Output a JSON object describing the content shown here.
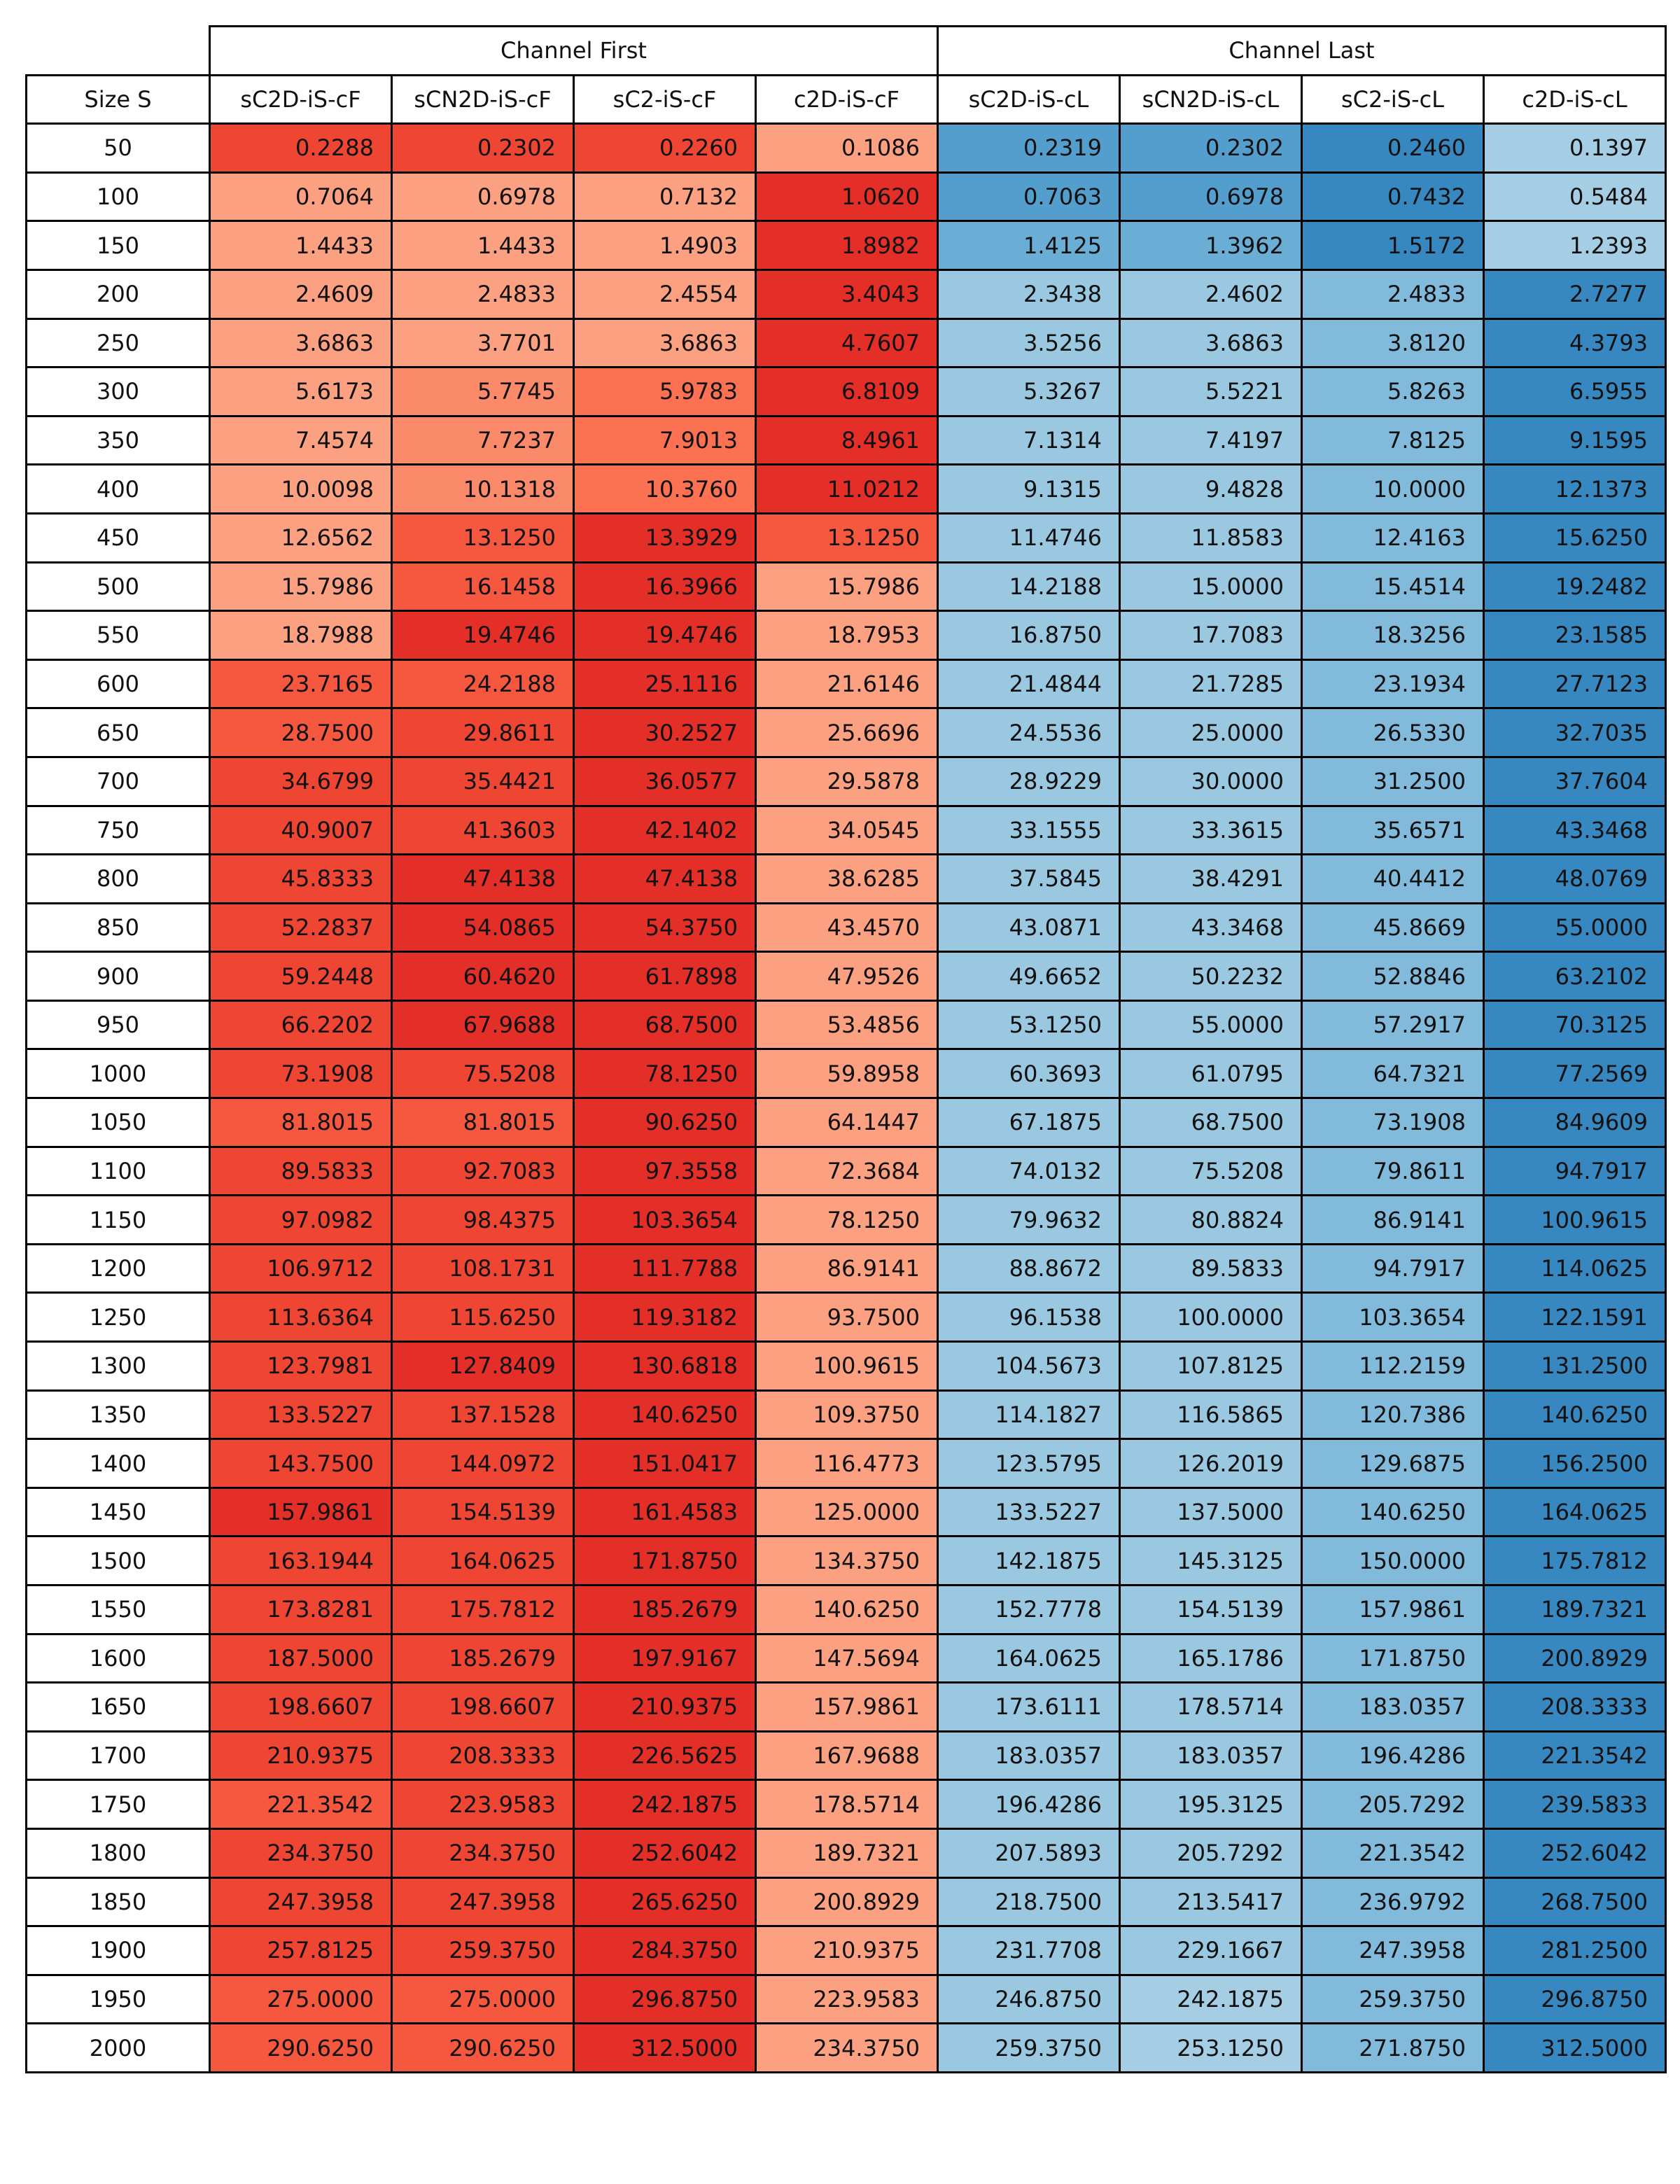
{
  "chart_data": {
    "type": "table",
    "groups": [
      {
        "label": "Channel First",
        "span": 4
      },
      {
        "label": "Channel Last",
        "span": 4
      }
    ],
    "row_header": "Size S",
    "columns": [
      "sC2D-iS-cF",
      "sCN2D-iS-cF",
      "sC2-iS-cF",
      "c2D-iS-cF",
      "sC2D-iS-cL",
      "sCN2D-iS-cL",
      "sC2-iS-cL",
      "c2D-iS-cL"
    ],
    "rows": [
      {
        "size": "50",
        "values": [
          "0.2288",
          "0.2302",
          "0.2260",
          "0.1086",
          "0.2319",
          "0.2302",
          "0.2460",
          "0.1397"
        ],
        "shades": [
          5,
          5,
          5,
          1,
          5,
          5,
          6,
          1
        ]
      },
      {
        "size": "100",
        "values": [
          "0.7064",
          "0.6978",
          "0.7132",
          "1.0620",
          "0.7063",
          "0.6978",
          "0.7432",
          "0.5484"
        ],
        "shades": [
          1,
          1,
          1,
          6,
          5,
          5,
          6,
          1
        ]
      },
      {
        "size": "150",
        "values": [
          "1.4433",
          "1.4433",
          "1.4903",
          "1.8982",
          "1.4125",
          "1.3962",
          "1.5172",
          "1.2393"
        ],
        "shades": [
          1,
          1,
          1,
          6,
          4,
          4,
          6,
          1
        ]
      },
      {
        "size": "200",
        "values": [
          "2.4609",
          "2.4833",
          "2.4554",
          "3.4043",
          "2.3438",
          "2.4602",
          "2.4833",
          "2.7277"
        ],
        "shades": [
          1,
          1,
          1,
          6,
          2,
          2,
          3,
          6
        ]
      },
      {
        "size": "250",
        "values": [
          "3.6863",
          "3.7701",
          "3.6863",
          "4.7607",
          "3.5256",
          "3.6863",
          "3.8120",
          "4.3793"
        ],
        "shades": [
          1,
          1,
          1,
          6,
          2,
          2,
          3,
          6
        ]
      },
      {
        "size": "300",
        "values": [
          "5.6173",
          "5.7745",
          "5.9783",
          "6.8109",
          "5.3267",
          "5.5221",
          "5.8263",
          "6.5955"
        ],
        "shades": [
          1,
          2,
          3,
          6,
          2,
          2,
          3,
          6
        ]
      },
      {
        "size": "350",
        "values": [
          "7.4574",
          "7.7237",
          "7.9013",
          "8.4961",
          "7.1314",
          "7.4197",
          "7.8125",
          "9.1595"
        ],
        "shades": [
          1,
          2,
          3,
          6,
          2,
          2,
          3,
          6
        ]
      },
      {
        "size": "400",
        "values": [
          "10.0098",
          "10.1318",
          "10.3760",
          "11.0212",
          "9.1315",
          "9.4828",
          "10.0000",
          "12.1373"
        ],
        "shades": [
          1,
          2,
          3,
          6,
          2,
          2,
          3,
          6
        ]
      },
      {
        "size": "450",
        "values": [
          "12.6562",
          "13.1250",
          "13.3929",
          "13.1250",
          "11.4746",
          "11.8583",
          "12.4163",
          "15.6250"
        ],
        "shades": [
          1,
          4,
          6,
          4,
          2,
          2,
          3,
          6
        ]
      },
      {
        "size": "500",
        "values": [
          "15.7986",
          "16.1458",
          "16.3966",
          "15.7986",
          "14.2188",
          "15.0000",
          "15.4514",
          "19.2482"
        ],
        "shades": [
          1,
          4,
          6,
          1,
          2,
          2,
          3,
          6
        ]
      },
      {
        "size": "550",
        "values": [
          "18.7988",
          "19.4746",
          "19.4746",
          "18.7953",
          "16.8750",
          "17.7083",
          "18.3256",
          "23.1585"
        ],
        "shades": [
          1,
          6,
          6,
          1,
          2,
          2,
          3,
          6
        ]
      },
      {
        "size": "600",
        "values": [
          "23.7165",
          "24.2188",
          "25.1116",
          "21.6146",
          "21.4844",
          "21.7285",
          "23.1934",
          "27.7123"
        ],
        "shades": [
          4,
          4,
          6,
          1,
          2,
          2,
          3,
          6
        ]
      },
      {
        "size": "650",
        "values": [
          "28.7500",
          "29.8611",
          "30.2527",
          "25.6696",
          "24.5536",
          "25.0000",
          "26.5330",
          "32.7035"
        ],
        "shades": [
          4,
          5,
          6,
          1,
          2,
          2,
          3,
          6
        ]
      },
      {
        "size": "700",
        "values": [
          "34.6799",
          "35.4421",
          "36.0577",
          "29.5878",
          "28.9229",
          "30.0000",
          "31.2500",
          "37.7604"
        ],
        "shades": [
          5,
          5,
          6,
          1,
          2,
          2,
          3,
          6
        ]
      },
      {
        "size": "750",
        "values": [
          "40.9007",
          "41.3603",
          "42.1402",
          "34.0545",
          "33.1555",
          "33.3615",
          "35.6571",
          "43.3468"
        ],
        "shades": [
          5,
          5,
          6,
          1,
          2,
          2,
          3,
          6
        ]
      },
      {
        "size": "800",
        "values": [
          "45.8333",
          "47.4138",
          "47.4138",
          "38.6285",
          "37.5845",
          "38.4291",
          "40.4412",
          "48.0769"
        ],
        "shades": [
          5,
          6,
          6,
          1,
          2,
          2,
          3,
          6
        ]
      },
      {
        "size": "850",
        "values": [
          "52.2837",
          "54.0865",
          "54.3750",
          "43.4570",
          "43.0871",
          "43.3468",
          "45.8669",
          "55.0000"
        ],
        "shades": [
          5,
          6,
          6,
          1,
          2,
          2,
          3,
          6
        ]
      },
      {
        "size": "900",
        "values": [
          "59.2448",
          "60.4620",
          "61.7898",
          "47.9526",
          "49.6652",
          "50.2232",
          "52.8846",
          "63.2102"
        ],
        "shades": [
          5,
          6,
          6,
          1,
          2,
          2,
          3,
          6
        ]
      },
      {
        "size": "950",
        "values": [
          "66.2202",
          "67.9688",
          "68.7500",
          "53.4856",
          "53.1250",
          "55.0000",
          "57.2917",
          "70.3125"
        ],
        "shades": [
          5,
          6,
          6,
          1,
          2,
          2,
          3,
          6
        ]
      },
      {
        "size": "1000",
        "values": [
          "73.1908",
          "75.5208",
          "78.1250",
          "59.8958",
          "60.3693",
          "61.0795",
          "64.7321",
          "77.2569"
        ],
        "shades": [
          5,
          5,
          6,
          1,
          2,
          2,
          3,
          6
        ]
      },
      {
        "size": "1050",
        "values": [
          "81.8015",
          "81.8015",
          "90.6250",
          "64.1447",
          "67.1875",
          "68.7500",
          "73.1908",
          "84.9609"
        ],
        "shades": [
          4,
          4,
          6,
          1,
          2,
          2,
          3,
          6
        ]
      },
      {
        "size": "1100",
        "values": [
          "89.5833",
          "92.7083",
          "97.3558",
          "72.3684",
          "74.0132",
          "75.5208",
          "79.8611",
          "94.7917"
        ],
        "shades": [
          5,
          5,
          6,
          1,
          2,
          2,
          3,
          6
        ]
      },
      {
        "size": "1150",
        "values": [
          "97.0982",
          "98.4375",
          "103.3654",
          "78.1250",
          "79.9632",
          "80.8824",
          "86.9141",
          "100.9615"
        ],
        "shades": [
          5,
          5,
          6,
          1,
          2,
          2,
          3,
          6
        ]
      },
      {
        "size": "1200",
        "values": [
          "106.9712",
          "108.1731",
          "111.7788",
          "86.9141",
          "88.8672",
          "89.5833",
          "94.7917",
          "114.0625"
        ],
        "shades": [
          5,
          5,
          6,
          1,
          2,
          2,
          3,
          6
        ]
      },
      {
        "size": "1250",
        "values": [
          "113.6364",
          "115.6250",
          "119.3182",
          "93.7500",
          "96.1538",
          "100.0000",
          "103.3654",
          "122.1591"
        ],
        "shades": [
          5,
          5,
          6,
          1,
          2,
          2,
          3,
          6
        ]
      },
      {
        "size": "1300",
        "values": [
          "123.7981",
          "127.8409",
          "130.6818",
          "100.9615",
          "104.5673",
          "107.8125",
          "112.2159",
          "131.2500"
        ],
        "shades": [
          5,
          6,
          6,
          1,
          2,
          2,
          3,
          6
        ]
      },
      {
        "size": "1350",
        "values": [
          "133.5227",
          "137.1528",
          "140.6250",
          "109.3750",
          "114.1827",
          "116.5865",
          "120.7386",
          "140.6250"
        ],
        "shades": [
          5,
          5,
          6,
          1,
          2,
          2,
          3,
          6
        ]
      },
      {
        "size": "1400",
        "values": [
          "143.7500",
          "144.0972",
          "151.0417",
          "116.4773",
          "123.5795",
          "126.2019",
          "129.6875",
          "156.2500"
        ],
        "shades": [
          5,
          5,
          6,
          1,
          2,
          2,
          3,
          6
        ]
      },
      {
        "size": "1450",
        "values": [
          "157.9861",
          "154.5139",
          "161.4583",
          "125.0000",
          "133.5227",
          "137.5000",
          "140.6250",
          "164.0625"
        ],
        "shades": [
          6,
          5,
          6,
          1,
          2,
          2,
          3,
          6
        ]
      },
      {
        "size": "1500",
        "values": [
          "163.1944",
          "164.0625",
          "171.8750",
          "134.3750",
          "142.1875",
          "145.3125",
          "150.0000",
          "175.7812"
        ],
        "shades": [
          5,
          5,
          6,
          1,
          2,
          2,
          3,
          6
        ]
      },
      {
        "size": "1550",
        "values": [
          "173.8281",
          "175.7812",
          "185.2679",
          "140.6250",
          "152.7778",
          "154.5139",
          "157.9861",
          "189.7321"
        ],
        "shades": [
          5,
          5,
          6,
          1,
          2,
          2,
          3,
          6
        ]
      },
      {
        "size": "1600",
        "values": [
          "187.5000",
          "185.2679",
          "197.9167",
          "147.5694",
          "164.0625",
          "165.1786",
          "171.8750",
          "200.8929"
        ],
        "shades": [
          5,
          5,
          6,
          1,
          2,
          2,
          3,
          6
        ]
      },
      {
        "size": "1650",
        "values": [
          "198.6607",
          "198.6607",
          "210.9375",
          "157.9861",
          "173.6111",
          "178.5714",
          "183.0357",
          "208.3333"
        ],
        "shades": [
          5,
          5,
          6,
          1,
          2,
          2,
          3,
          6
        ]
      },
      {
        "size": "1700",
        "values": [
          "210.9375",
          "208.3333",
          "226.5625",
          "167.9688",
          "183.0357",
          "183.0357",
          "196.4286",
          "221.3542"
        ],
        "shades": [
          5,
          5,
          6,
          1,
          2,
          2,
          3,
          6
        ]
      },
      {
        "size": "1750",
        "values": [
          "221.3542",
          "223.9583",
          "242.1875",
          "178.5714",
          "196.4286",
          "195.3125",
          "205.7292",
          "239.5833"
        ],
        "shades": [
          4,
          5,
          6,
          1,
          2,
          2,
          3,
          6
        ]
      },
      {
        "size": "1800",
        "values": [
          "234.3750",
          "234.3750",
          "252.6042",
          "189.7321",
          "207.5893",
          "205.7292",
          "221.3542",
          "252.6042"
        ],
        "shades": [
          5,
          5,
          6,
          1,
          2,
          2,
          3,
          6
        ]
      },
      {
        "size": "1850",
        "values": [
          "247.3958",
          "247.3958",
          "265.6250",
          "200.8929",
          "218.7500",
          "213.5417",
          "236.9792",
          "268.7500"
        ],
        "shades": [
          5,
          5,
          6,
          1,
          2,
          2,
          3,
          6
        ]
      },
      {
        "size": "1900",
        "values": [
          "257.8125",
          "259.3750",
          "284.3750",
          "210.9375",
          "231.7708",
          "229.1667",
          "247.3958",
          "281.2500"
        ],
        "shades": [
          5,
          5,
          6,
          1,
          2,
          2,
          3,
          6
        ]
      },
      {
        "size": "1950",
        "values": [
          "275.0000",
          "275.0000",
          "296.8750",
          "223.9583",
          "246.8750",
          "242.1875",
          "259.3750",
          "296.8750"
        ],
        "shades": [
          4,
          4,
          6,
          1,
          2,
          1,
          3,
          6
        ]
      },
      {
        "size": "2000",
        "values": [
          "290.6250",
          "290.6250",
          "312.5000",
          "234.3750",
          "259.3750",
          "253.1250",
          "271.8750",
          "312.5000"
        ],
        "shades": [
          4,
          4,
          6,
          1,
          2,
          1,
          3,
          6
        ]
      }
    ]
  },
  "palette": {
    "red": [
      "#fca082",
      "#fb8a6a",
      "#fb7151",
      "#f5583f",
      "#ef4533",
      "#e32f27"
    ],
    "blue": [
      "#a5cde3",
      "#9ac8e0",
      "#82badb",
      "#6aaed6",
      "#539ecd",
      "#3787c0"
    ],
    "border": "#000000",
    "text": "#111111"
  }
}
